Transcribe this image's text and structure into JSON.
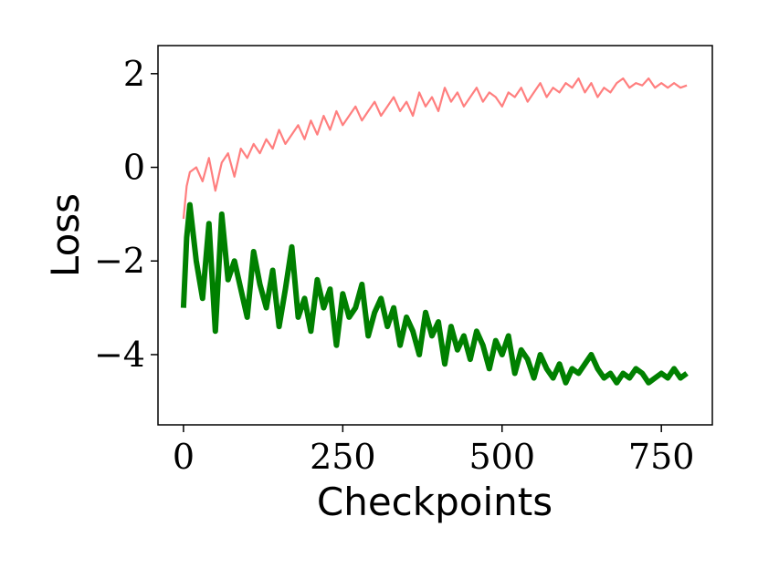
{
  "chart_data": {
    "type": "line",
    "title": "",
    "xlabel": "Checkpoints",
    "ylabel": "Loss",
    "xlim": [
      -40,
      830
    ],
    "ylim": [
      -5.5,
      2.6
    ],
    "xticks": [
      0,
      250,
      500,
      750
    ],
    "xtick_labels": [
      "0",
      "250",
      "500",
      "750"
    ],
    "yticks": [
      2,
      0,
      -2,
      -4
    ],
    "ytick_labels": [
      "2",
      "0",
      "−2",
      "−4"
    ],
    "grid": false,
    "legend": "none",
    "series": [
      {
        "color": "#ff7f7f",
        "x": [
          0,
          5,
          10,
          20,
          30,
          40,
          50,
          60,
          70,
          80,
          90,
          100,
          110,
          120,
          130,
          140,
          150,
          160,
          170,
          180,
          190,
          200,
          210,
          220,
          230,
          240,
          250,
          260,
          270,
          280,
          290,
          300,
          310,
          320,
          330,
          340,
          350,
          360,
          370,
          380,
          390,
          400,
          410,
          420,
          430,
          440,
          450,
          460,
          470,
          480,
          490,
          500,
          510,
          520,
          530,
          540,
          550,
          560,
          570,
          580,
          590,
          600,
          610,
          620,
          630,
          640,
          650,
          660,
          670,
          680,
          690,
          700,
          710,
          720,
          730,
          740,
          750,
          760,
          770,
          780,
          790
        ],
        "values": [
          -1.1,
          -0.4,
          -0.1,
          0.0,
          -0.3,
          0.2,
          -0.5,
          0.1,
          0.3,
          -0.2,
          0.4,
          0.2,
          0.5,
          0.3,
          0.6,
          0.4,
          0.8,
          0.5,
          0.7,
          0.9,
          0.6,
          1.0,
          0.7,
          1.1,
          0.8,
          1.2,
          0.9,
          1.1,
          1.3,
          1.0,
          1.2,
          1.4,
          1.1,
          1.3,
          1.5,
          1.2,
          1.4,
          1.1,
          1.6,
          1.3,
          1.5,
          1.2,
          1.7,
          1.4,
          1.6,
          1.3,
          1.5,
          1.7,
          1.4,
          1.6,
          1.5,
          1.3,
          1.6,
          1.5,
          1.7,
          1.4,
          1.6,
          1.8,
          1.5,
          1.7,
          1.6,
          1.8,
          1.7,
          1.9,
          1.6,
          1.8,
          1.5,
          1.7,
          1.6,
          1.8,
          1.9,
          1.7,
          1.8,
          1.75,
          1.9,
          1.7,
          1.8,
          1.7,
          1.8,
          1.7,
          1.75
        ]
      },
      {
        "color": "#008000",
        "x": [
          0,
          5,
          10,
          20,
          30,
          40,
          50,
          60,
          70,
          80,
          90,
          100,
          110,
          120,
          130,
          140,
          150,
          160,
          170,
          180,
          190,
          200,
          210,
          220,
          230,
          240,
          250,
          260,
          270,
          280,
          290,
          300,
          310,
          320,
          330,
          340,
          350,
          360,
          370,
          380,
          390,
          400,
          410,
          420,
          430,
          440,
          450,
          460,
          470,
          480,
          490,
          500,
          510,
          520,
          530,
          540,
          550,
          560,
          570,
          580,
          590,
          600,
          610,
          620,
          630,
          640,
          650,
          660,
          670,
          680,
          690,
          700,
          710,
          720,
          730,
          740,
          750,
          760,
          770,
          780,
          790
        ],
        "values": [
          -3.0,
          -1.5,
          -0.8,
          -2.0,
          -2.8,
          -1.2,
          -3.5,
          -1.0,
          -2.4,
          -2.0,
          -2.6,
          -3.2,
          -1.8,
          -2.5,
          -3.0,
          -2.2,
          -3.4,
          -2.6,
          -1.7,
          -3.2,
          -2.8,
          -3.5,
          -2.4,
          -3.0,
          -2.6,
          -3.8,
          -2.7,
          -3.2,
          -3.0,
          -2.5,
          -3.6,
          -3.1,
          -2.8,
          -3.4,
          -3.0,
          -3.8,
          -3.2,
          -3.5,
          -4.0,
          -3.1,
          -3.6,
          -3.3,
          -4.2,
          -3.4,
          -3.9,
          -3.6,
          -4.1,
          -3.5,
          -3.8,
          -4.3,
          -3.7,
          -4.0,
          -3.6,
          -4.4,
          -3.9,
          -4.1,
          -4.5,
          -4.0,
          -4.3,
          -4.5,
          -4.2,
          -4.6,
          -4.3,
          -4.4,
          -4.2,
          -4.0,
          -4.3,
          -4.5,
          -4.4,
          -4.6,
          -4.4,
          -4.5,
          -4.3,
          -4.4,
          -4.6,
          -4.5,
          -4.4,
          -4.5,
          -4.3,
          -4.5,
          -4.4
        ]
      }
    ]
  }
}
